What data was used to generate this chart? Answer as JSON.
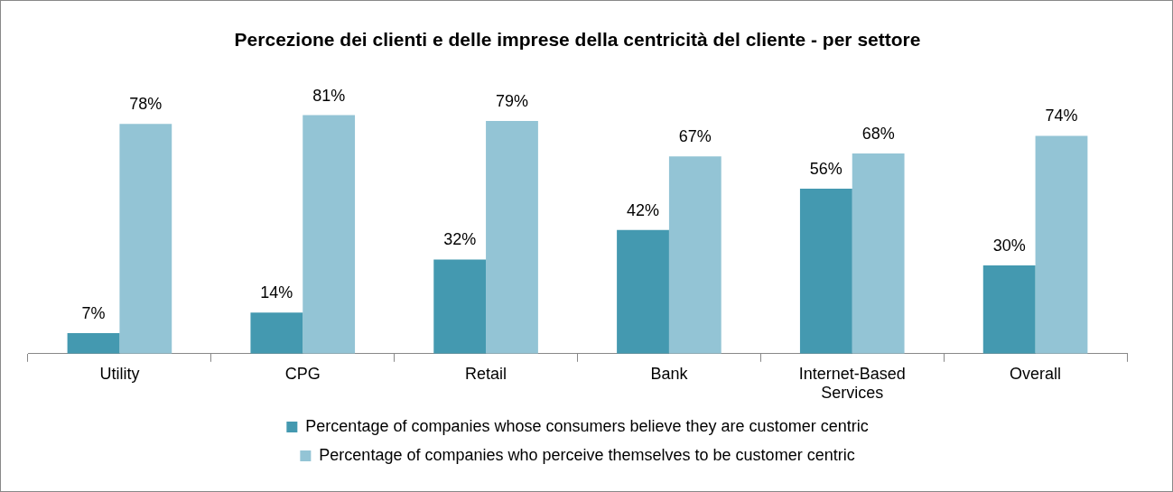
{
  "chart_data": {
    "type": "bar",
    "title": "Percezione dei clienti e delle imprese della centricità del cliente - per settore",
    "categories": [
      "Utility",
      "CPG",
      "Retail",
      "Bank",
      "Internet-Based Services",
      "Overall"
    ],
    "series": [
      {
        "name": "Percentage of companies whose consumers believe they are customer centric",
        "color": "#4499b0",
        "values": [
          7,
          14,
          32,
          42,
          56,
          30
        ],
        "value_labels": [
          "7%",
          "14%",
          "32%",
          "42%",
          "56%",
          "30%"
        ]
      },
      {
        "name": "Percentage of companies who perceive themselves to be customer centric",
        "color": "#93c4d5",
        "values": [
          78,
          81,
          79,
          67,
          68,
          74
        ],
        "value_labels": [
          "78%",
          "81%",
          "79%",
          "67%",
          "68%",
          "74%"
        ]
      }
    ],
    "legend": "bottom"
  }
}
